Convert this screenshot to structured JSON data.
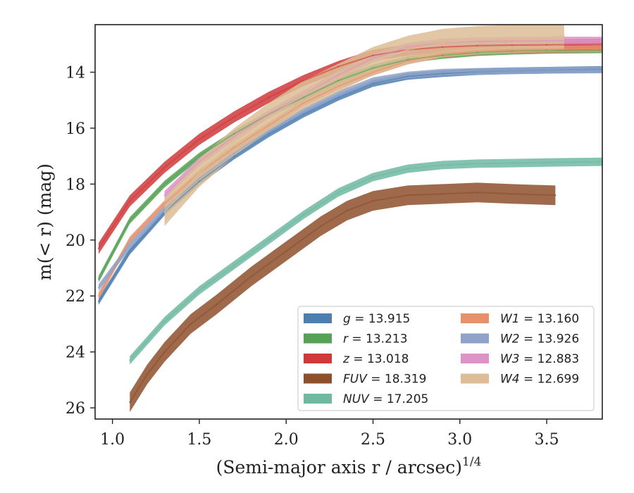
{
  "chart_data": {
    "type": "line",
    "xlabel": "(Semi-major axis r / arcsec)",
    "xlabel_sup": "1/4",
    "ylabel": "m(< r) (mag)",
    "xlim": [
      0.9,
      3.82
    ],
    "ylim": [
      26.4,
      12.3
    ],
    "y_inverted": true,
    "grid": false,
    "legend_placement": "lower-right",
    "x_ticks": [
      1.0,
      1.5,
      2.0,
      2.5,
      3.0,
      3.5
    ],
    "x_tick_labels": [
      "1.0",
      "1.5",
      "2.0",
      "2.5",
      "3.0",
      "3.5"
    ],
    "y_ticks": [
      14,
      16,
      18,
      20,
      22,
      24,
      26
    ],
    "y_tick_labels": [
      "14",
      "16",
      "18",
      "20",
      "22",
      "24",
      "26"
    ],
    "series": [
      {
        "name": "g",
        "value": "13.915",
        "color": "#4c7fb0",
        "x": [
          0.92,
          1.1,
          1.3,
          1.5,
          1.7,
          1.9,
          2.1,
          2.3,
          2.5,
          2.7,
          2.9,
          3.1,
          3.3,
          3.5,
          3.82
        ],
        "y": [
          22.2,
          20.4,
          19.0,
          17.9,
          17.0,
          16.2,
          15.5,
          14.9,
          14.4,
          14.15,
          14.05,
          13.98,
          13.95,
          13.93,
          13.9
        ],
        "band": 0.12
      },
      {
        "name": "r",
        "value": "13.213",
        "color": "#55a155",
        "x": [
          0.92,
          1.1,
          1.3,
          1.5,
          1.7,
          1.9,
          2.1,
          2.3,
          2.5,
          2.7,
          2.9,
          3.1,
          3.3,
          3.5,
          3.82
        ],
        "y": [
          21.4,
          19.3,
          18.0,
          17.0,
          16.2,
          15.5,
          14.9,
          14.3,
          13.85,
          13.55,
          13.4,
          13.3,
          13.25,
          13.22,
          13.2
        ],
        "band": 0.12
      },
      {
        "name": "z",
        "value": "13.018",
        "color": "#d0393c",
        "x": [
          0.92,
          1.1,
          1.3,
          1.5,
          1.7,
          1.9,
          2.1,
          2.3,
          2.5,
          2.7,
          2.9,
          3.1,
          3.3,
          3.5,
          3.82
        ],
        "y": [
          20.3,
          18.6,
          17.4,
          16.4,
          15.6,
          14.9,
          14.3,
          13.8,
          13.4,
          13.2,
          13.1,
          13.05,
          13.03,
          13.02,
          13.0
        ],
        "band": 0.2
      },
      {
        "name": "FUV",
        "value": "18.319",
        "color": "#8e4f2b",
        "x": [
          1.1,
          1.2,
          1.3,
          1.45,
          1.6,
          1.8,
          2.0,
          2.2,
          2.35,
          2.5,
          2.7,
          2.9,
          3.1,
          3.3,
          3.55
        ],
        "y": [
          25.8,
          24.8,
          24.0,
          23.0,
          22.3,
          21.3,
          20.4,
          19.5,
          18.95,
          18.6,
          18.4,
          18.35,
          18.3,
          18.35,
          18.4
        ],
        "band": 0.35
      },
      {
        "name": "NUV",
        "value": "17.205",
        "color": "#6fb9a1",
        "x": [
          1.1,
          1.3,
          1.5,
          1.7,
          1.9,
          2.1,
          2.3,
          2.5,
          2.7,
          2.9,
          3.1,
          3.3,
          3.5,
          3.82
        ],
        "y": [
          24.3,
          22.9,
          21.8,
          20.9,
          20.0,
          19.1,
          18.3,
          17.75,
          17.45,
          17.32,
          17.27,
          17.25,
          17.23,
          17.2
        ],
        "band": 0.15
      },
      {
        "name": "W1",
        "value": "13.160",
        "color": "#e8906c",
        "x": [
          0.92,
          1.1,
          1.3,
          1.5,
          1.7,
          1.9,
          2.1,
          2.3,
          2.5,
          2.7,
          2.9,
          3.1,
          3.3,
          3.5,
          3.82
        ],
        "y": [
          22.0,
          20.0,
          18.7,
          17.6,
          16.7,
          15.9,
          15.1,
          14.5,
          14.0,
          13.6,
          13.35,
          13.25,
          13.2,
          13.18,
          13.16
        ],
        "band": 0.12
      },
      {
        "name": "W2",
        "value": "13.926",
        "color": "#8fa3c8",
        "x": [
          0.92,
          1.1,
          1.3,
          1.5,
          1.7,
          1.9,
          2.1,
          2.3,
          2.5,
          2.7,
          2.9,
          3.1,
          3.3,
          3.5,
          3.82
        ],
        "y": [
          21.7,
          20.2,
          18.9,
          17.8,
          16.9,
          16.1,
          15.4,
          14.8,
          14.3,
          14.1,
          14.0,
          13.97,
          13.95,
          13.93,
          13.92
        ],
        "band": 0.12
      },
      {
        "name": "W3",
        "value": "12.883",
        "color": "#dc93c5",
        "x": [
          1.3,
          1.5,
          1.7,
          1.9,
          2.1,
          2.3,
          2.5,
          2.7,
          2.9,
          3.1,
          3.3,
          3.5,
          3.82
        ],
        "y": [
          18.4,
          17.2,
          16.3,
          15.5,
          14.8,
          14.1,
          13.5,
          13.1,
          12.95,
          12.9,
          12.89,
          12.88,
          12.88
        ],
        "band": 0.15
      },
      {
        "name": "W4",
        "value": "12.699",
        "color": "#dcbd97",
        "x": [
          1.3,
          1.5,
          1.7,
          1.9,
          2.1,
          2.3,
          2.5,
          2.7,
          2.9,
          3.1,
          3.3,
          3.5,
          3.6
        ],
        "y": [
          19.0,
          17.6,
          16.5,
          15.6,
          14.8,
          14.2,
          13.6,
          13.2,
          12.95,
          12.85,
          12.8,
          12.75,
          12.7
        ],
        "band": 0.5
      }
    ]
  }
}
